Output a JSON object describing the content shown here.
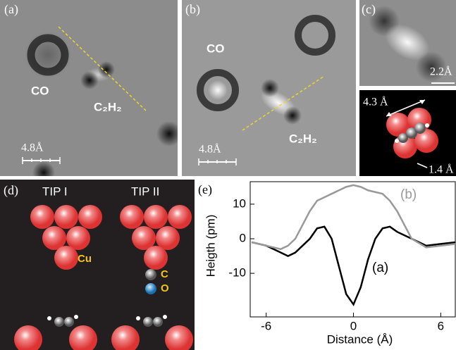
{
  "panels": {
    "a": {
      "label": "(a)",
      "co": "CO",
      "c2h2": "C₂H₂",
      "scale": "4.8Å"
    },
    "b": {
      "label": "(b)",
      "co": "CO",
      "c2h2": "C₂H₂",
      "scale": "4.8Å"
    },
    "c": {
      "label": "(c)",
      "scale": "2.2Å",
      "length": "4.3 Å",
      "spacing": "1.4 Å"
    },
    "d": {
      "label": "(d)",
      "tip1": "TIP I",
      "tip2": "TIP II",
      "cu": "Cu",
      "c": "C",
      "o": "O"
    }
  },
  "chart_data": {
    "type": "line",
    "panel_label": "(e)",
    "x_label": "Distance (Å)",
    "y_label": "Heigth (pm)",
    "x": [
      -7,
      -6,
      -5,
      -4.5,
      -4,
      -3,
      -2.5,
      -2,
      -1.5,
      -1,
      -0.5,
      0,
      0.5,
      1,
      1.5,
      2,
      2.5,
      3,
      4,
      5,
      6,
      7
    ],
    "series": [
      {
        "name": "(a)",
        "color": "#000000",
        "values": [
          -1,
          -2,
          -4,
          -5,
          -4,
          0,
          3,
          3.5,
          0,
          -8,
          -16,
          -19,
          -14,
          -6,
          0,
          3,
          3.5,
          2,
          0,
          -2,
          -1.5,
          -1
        ]
      },
      {
        "name": "(b)",
        "color": "#999999",
        "values": [
          -1,
          -2,
          -3,
          -2,
          0,
          8,
          11,
          12,
          13,
          14,
          15,
          15.5,
          15,
          14,
          13.5,
          13,
          11,
          8,
          0,
          -2.5,
          -2,
          -1.5
        ]
      }
    ],
    "xlim": [
      -7.1,
      7
    ],
    "ylim": [
      -22.6,
      16.5
    ],
    "xticks": [
      -6,
      0,
      6
    ],
    "yticks": [
      -10,
      0,
      10
    ]
  }
}
